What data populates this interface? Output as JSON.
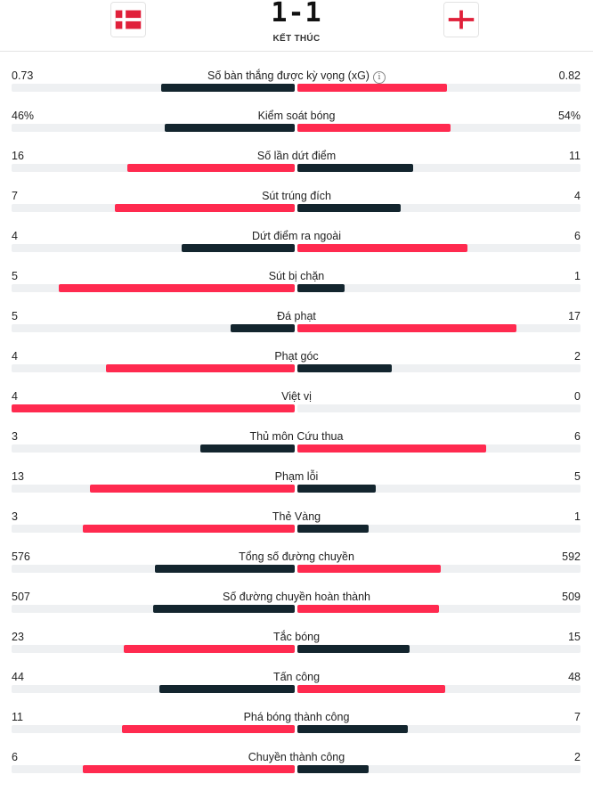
{
  "match": {
    "score": "1-1",
    "status": "KẾT THÚC",
    "home_flag": "denmark-flag",
    "away_flag": "england-flag"
  },
  "colors": {
    "leader": "#ff2a4f",
    "trailer": "#13252e",
    "track": "#eef0f2"
  },
  "stats": [
    {
      "label": "Số bàn thắng được kỳ vọng (xG)",
      "home": "0.73",
      "away": "0.82",
      "home_num": 0.73,
      "away_num": 0.82,
      "info": true
    },
    {
      "label": "Kiểm soát bóng",
      "home": "46%",
      "away": "54%",
      "home_num": 46,
      "away_num": 54
    },
    {
      "label": "Số lần dứt điểm",
      "home": "16",
      "away": "11",
      "home_num": 16,
      "away_num": 11
    },
    {
      "label": "Sút trúng đích",
      "home": "7",
      "away": "4",
      "home_num": 7,
      "away_num": 4
    },
    {
      "label": "Dứt điểm ra ngoài",
      "home": "4",
      "away": "6",
      "home_num": 4,
      "away_num": 6
    },
    {
      "label": "Sút bị chặn",
      "home": "5",
      "away": "1",
      "home_num": 5,
      "away_num": 1
    },
    {
      "label": "Đá phạt",
      "home": "5",
      "away": "17",
      "home_num": 5,
      "away_num": 17
    },
    {
      "label": "Phạt góc",
      "home": "4",
      "away": "2",
      "home_num": 4,
      "away_num": 2
    },
    {
      "label": "Việt vị",
      "home": "4",
      "away": "0",
      "home_num": 4,
      "away_num": 0
    },
    {
      "label": "Thủ môn Cứu thua",
      "home": "3",
      "away": "6",
      "home_num": 3,
      "away_num": 6
    },
    {
      "label": "Phạm lỗi",
      "home": "13",
      "away": "5",
      "home_num": 13,
      "away_num": 5
    },
    {
      "label": "Thẻ Vàng",
      "home": "3",
      "away": "1",
      "home_num": 3,
      "away_num": 1
    },
    {
      "label": "Tổng số đường chuyền",
      "home": "576",
      "away": "592",
      "home_num": 576,
      "away_num": 592
    },
    {
      "label": "Số đường chuyền hoàn thành",
      "home": "507",
      "away": "509",
      "home_num": 507,
      "away_num": 509
    },
    {
      "label": "Tắc bóng",
      "home": "23",
      "away": "15",
      "home_num": 23,
      "away_num": 15
    },
    {
      "label": "Tấn công",
      "home": "44",
      "away": "48",
      "home_num": 44,
      "away_num": 48
    },
    {
      "label": "Phá bóng thành công",
      "home": "11",
      "away": "7",
      "home_num": 11,
      "away_num": 7
    },
    {
      "label": "Chuyền thành công",
      "home": "6",
      "away": "2",
      "home_num": 6,
      "away_num": 2
    }
  ]
}
